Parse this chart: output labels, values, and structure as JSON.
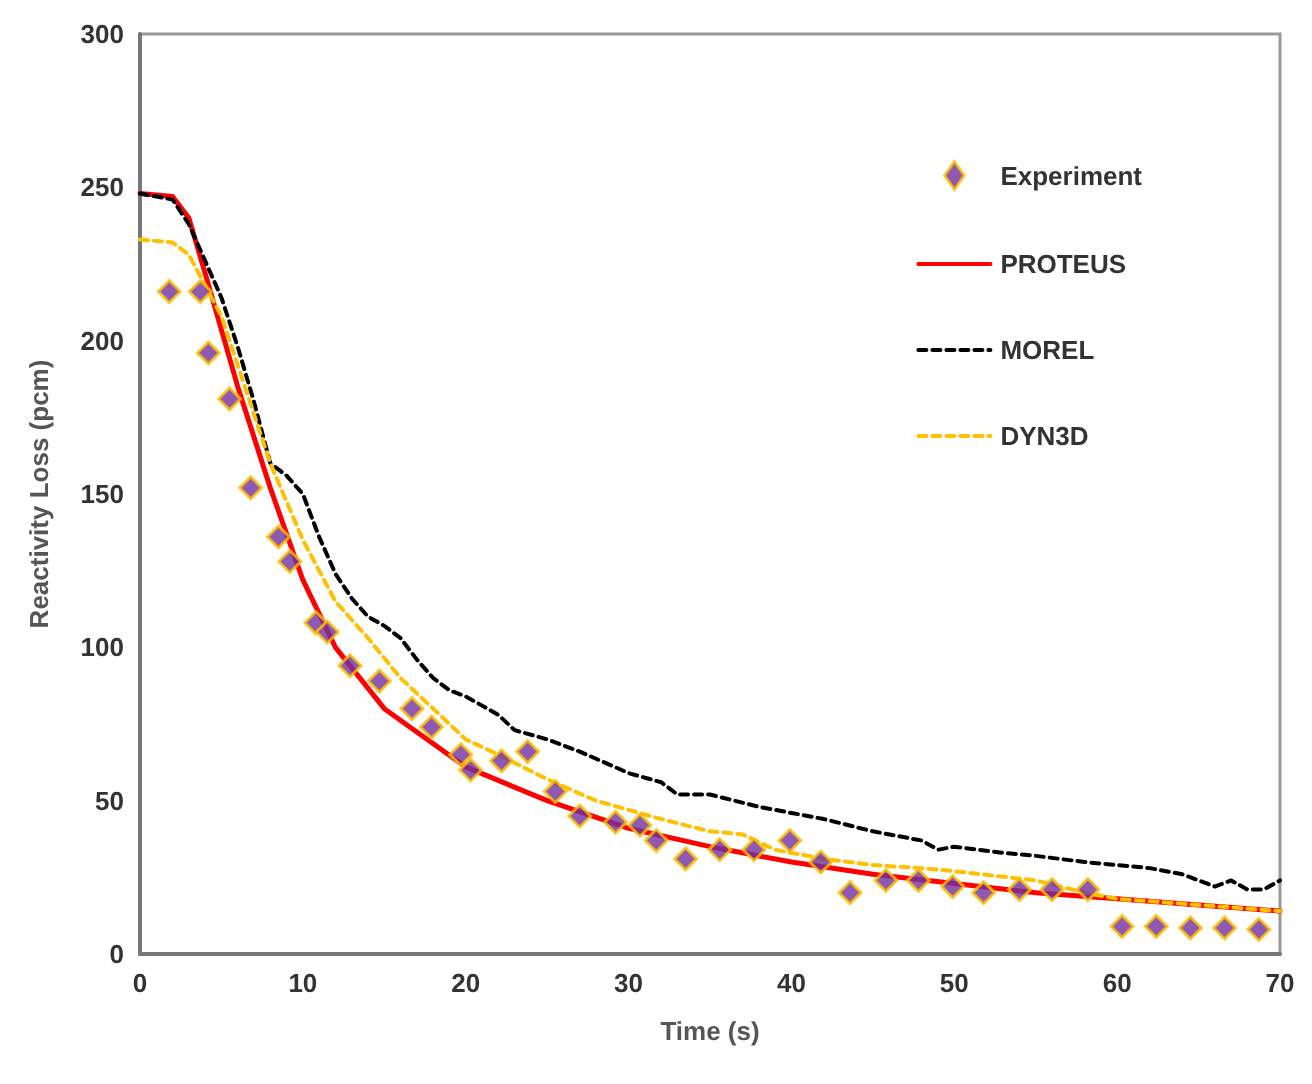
{
  "chart_data": {
    "type": "line",
    "xlabel": "Time (s)",
    "ylabel": "Reactivity Loss (pcm)",
    "xlim": [
      0,
      70
    ],
    "xticks": [
      0,
      10,
      20,
      30,
      40,
      50,
      60,
      70
    ],
    "ylim": [
      0,
      300
    ],
    "yticks": [
      0,
      50,
      100,
      150,
      200,
      250,
      300
    ],
    "grid": false,
    "legend": "top right",
    "series": [
      {
        "name": "Experiment",
        "type": "scatter",
        "marker": "diamond",
        "color": "#7030a0",
        "x": [
          1.8,
          3.7,
          4.2,
          5.5,
          6.8,
          8.5,
          9.2,
          10.8,
          11.5,
          12.9,
          14.7,
          16.7,
          17.9,
          19.7,
          20.3,
          22.2,
          23.8,
          25.5,
          27.0,
          29.2,
          30.7,
          31.7,
          33.5,
          35.6,
          37.7,
          39.9,
          41.8,
          43.6,
          45.8,
          47.8,
          49.9,
          51.8,
          54.0,
          56.0,
          58.2,
          60.3,
          62.4,
          64.5,
          66.6,
          68.7
        ],
        "values": [
          216,
          216,
          196,
          181,
          152,
          136,
          128,
          108,
          105,
          94,
          89,
          80,
          74,
          65,
          60,
          63,
          66,
          53,
          45,
          43,
          42,
          37,
          31,
          34,
          34,
          37,
          30,
          20,
          24,
          24,
          22,
          20,
          21,
          21,
          21,
          9,
          9,
          8.5,
          8.5,
          8
        ]
      },
      {
        "name": "PROTEUS",
        "marker": "none",
        "line_style": "solid",
        "color": "#ff0000",
        "x": [
          0,
          2,
          3,
          4,
          6,
          8,
          10,
          12,
          15,
          20,
          25,
          30,
          35,
          40,
          45,
          50,
          55,
          60,
          65,
          70
        ],
        "values": [
          248,
          247,
          240,
          222,
          185,
          152,
          122,
          100,
          80,
          61,
          50,
          41,
          35,
          30,
          26,
          23,
          20,
          18,
          16,
          14
        ]
      },
      {
        "name": "MOREL",
        "marker": "none",
        "line_style": "dashed",
        "color": "#000000",
        "x": [
          0,
          2,
          3,
          4,
          5,
          6,
          7,
          8,
          9,
          10,
          11,
          12,
          13,
          14,
          15,
          16,
          17,
          18,
          19,
          20,
          22,
          23,
          25,
          27,
          30,
          32,
          33,
          35,
          38,
          40,
          42,
          45,
          48,
          49,
          50,
          53,
          55,
          58,
          60,
          62,
          64,
          65,
          66,
          67,
          68,
          69,
          70
        ],
        "values": [
          248,
          246,
          238,
          226,
          214,
          198,
          180,
          160,
          156,
          150,
          136,
          124,
          116,
          110,
          107,
          103,
          96,
          90,
          86,
          84,
          78,
          73,
          70,
          66,
          59,
          56,
          52,
          52,
          48,
          46,
          44,
          40,
          37,
          34,
          35,
          33,
          32,
          30,
          29,
          28,
          26,
          24,
          22,
          24,
          21,
          21,
          24
        ]
      },
      {
        "name": "DYN3D",
        "marker": "none",
        "line_style": "dashed",
        "color": "#ffc000",
        "x": [
          0,
          2,
          3,
          4,
          5,
          6,
          8,
          10,
          12,
          14,
          16,
          18,
          20,
          22,
          25,
          28,
          30,
          32,
          35,
          37,
          39,
          42,
          45,
          48,
          50,
          55,
          58,
          60,
          65,
          70
        ],
        "values": [
          233,
          232,
          228,
          218,
          208,
          192,
          160,
          135,
          115,
          103,
          90,
          80,
          70,
          65,
          57,
          50,
          47,
          44,
          40,
          39,
          34,
          31,
          29,
          28,
          27,
          24,
          20,
          18,
          16,
          14
        ]
      }
    ]
  }
}
